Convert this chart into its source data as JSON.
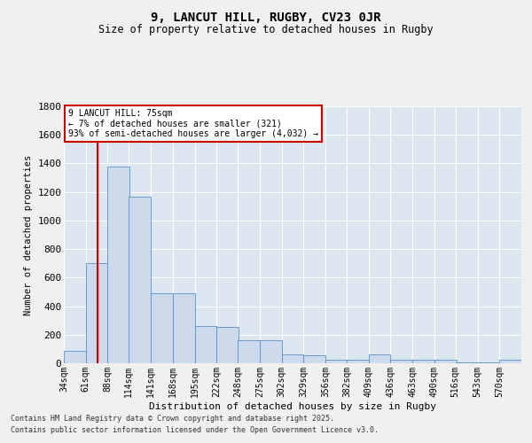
{
  "title1": "9, LANCUT HILL, RUGBY, CV23 0JR",
  "title2": "Size of property relative to detached houses in Rugby",
  "xlabel": "Distribution of detached houses by size in Rugby",
  "ylabel": "Number of detached properties",
  "bar_color": "#ccdaec",
  "bar_edge_color": "#5b8fc9",
  "background_color": "#dce6f1",
  "grid_color": "#ffffff",
  "vline_x": 75,
  "vline_color": "#cc0000",
  "annotation_box_color": "#cc0000",
  "annotation_lines": [
    "9 LANCUT HILL: 75sqm",
    "← 7% of detached houses are smaller (321)",
    "93% of semi-detached houses are larger (4,032) →"
  ],
  "categories": [
    "34sqm",
    "61sqm",
    "88sqm",
    "114sqm",
    "141sqm",
    "168sqm",
    "195sqm",
    "222sqm",
    "248sqm",
    "275sqm",
    "302sqm",
    "329sqm",
    "356sqm",
    "382sqm",
    "409sqm",
    "436sqm",
    "463sqm",
    "490sqm",
    "516sqm",
    "543sqm",
    "570sqm"
  ],
  "bin_starts": [
    34,
    61,
    88,
    114,
    141,
    168,
    195,
    222,
    248,
    275,
    302,
    329,
    356,
    382,
    409,
    436,
    463,
    490,
    516,
    543,
    570
  ],
  "bin_width": 27,
  "values": [
    90,
    700,
    1380,
    1170,
    490,
    490,
    260,
    255,
    160,
    160,
    60,
    55,
    25,
    25,
    60,
    25,
    25,
    25,
    8,
    8,
    25
  ],
  "ylim": [
    0,
    1800
  ],
  "yticks": [
    0,
    200,
    400,
    600,
    800,
    1000,
    1200,
    1400,
    1600,
    1800
  ],
  "fig_bg": "#f0f0f0",
  "footer1": "Contains HM Land Registry data © Crown copyright and database right 2025.",
  "footer2": "Contains public sector information licensed under the Open Government Licence v3.0."
}
